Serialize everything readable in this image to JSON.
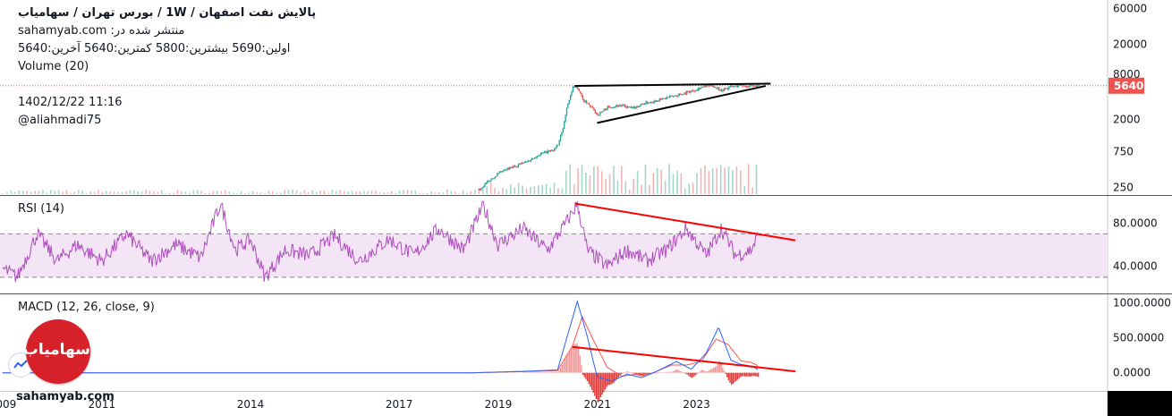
{
  "header": {
    "title": "پالایش نفت اصفهان / 1W / بورس تهران / سهامیاب",
    "published_on": "منتشر شده در: sahamyab.com",
    "ohlc": "اولین:5690 بیشترین:5800 کمترین:5640 آخرین:5640",
    "volume_label": "Volume (20)",
    "date": "1402/12/22 11:16",
    "author": "@aliahmadi75"
  },
  "last_price_badge": "5640",
  "rsi_label": "RSI (14)",
  "macd_label": "MACD (12, 26, close, 9)",
  "logo_text": "سهامیاب",
  "watermark": "sahamyab.com",
  "colors": {
    "bull": "#26a69a",
    "bear": "#ef5350",
    "rsi": "#9c27b0",
    "rsi_band": "#f3e5f5",
    "macd": "#2962ff",
    "signal": "#ff5252",
    "price_line": "#ef5350",
    "trend_red": "#ff0000"
  },
  "chart_data": [
    {
      "type": "line",
      "name": "price",
      "scale": "log",
      "ytick_labels": [
        "60000",
        "20000",
        "8000",
        "5640",
        "2000",
        "750",
        "250"
      ],
      "yticks": [
        60000,
        20000,
        8000,
        2000,
        750,
        250
      ],
      "ylim": [
        220,
        70000
      ],
      "x_tick_labels": [
        "2009",
        "2011",
        "2014",
        "2017",
        "2019",
        "2021",
        "2023"
      ],
      "x_ticks": [
        2009.0,
        2011.0,
        2014.0,
        2017.0,
        2019.0,
        2021.0,
        2023.0
      ],
      "xlim": [
        2008.95,
        2031.3
      ],
      "last_price": 5640,
      "close_points": [
        [
          2018.6,
          230
        ],
        [
          2018.8,
          300
        ],
        [
          2019.0,
          380
        ],
        [
          2019.3,
          470
        ],
        [
          2019.6,
          560
        ],
        [
          2019.85,
          700
        ],
        [
          2020.1,
          780
        ],
        [
          2020.2,
          900
        ],
        [
          2020.3,
          1500
        ],
        [
          2020.4,
          3200
        ],
        [
          2020.5,
          5200
        ],
        [
          2020.58,
          5600
        ],
        [
          2020.7,
          3600
        ],
        [
          2020.85,
          3000
        ],
        [
          2021.0,
          2300
        ],
        [
          2021.2,
          2900
        ],
        [
          2021.45,
          3100
        ],
        [
          2021.7,
          2800
        ],
        [
          2021.95,
          3300
        ],
        [
          2022.2,
          3600
        ],
        [
          2022.4,
          3900
        ],
        [
          2022.65,
          4300
        ],
        [
          2022.9,
          4800
        ],
        [
          2023.1,
          5400
        ],
        [
          2023.3,
          5700
        ],
        [
          2023.5,
          4900
        ],
        [
          2023.7,
          5500
        ],
        [
          2023.9,
          5700
        ],
        [
          2024.1,
          5500
        ],
        [
          2024.25,
          5640
        ]
      ],
      "annotations": [
        "upper trendline near 5600",
        "rising lower trendline"
      ]
    },
    {
      "type": "bar",
      "name": "Volume (20)",
      "note": "relative volume bars across the price history"
    },
    {
      "type": "line",
      "name": "RSI (14)",
      "ytick_labels": [
        "80.0000",
        "40.0000"
      ],
      "yticks": [
        80,
        40
      ],
      "ylim": [
        15,
        105
      ],
      "band": [
        30,
        70
      ],
      "points": [
        [
          2009.0,
          38
        ],
        [
          2009.3,
          30
        ],
        [
          2009.7,
          70
        ],
        [
          2010.1,
          45
        ],
        [
          2010.5,
          60
        ],
        [
          2011.0,
          45
        ],
        [
          2011.5,
          70
        ],
        [
          2012.0,
          45
        ],
        [
          2012.5,
          60
        ],
        [
          2013.0,
          48
        ],
        [
          2013.4,
          98
        ],
        [
          2013.7,
          55
        ],
        [
          2014.0,
          65
        ],
        [
          2014.3,
          30
        ],
        [
          2014.7,
          55
        ],
        [
          2015.2,
          50
        ],
        [
          2015.7,
          68
        ],
        [
          2016.2,
          45
        ],
        [
          2016.8,
          65
        ],
        [
          2017.3,
          50
        ],
        [
          2017.8,
          75
        ],
        [
          2018.3,
          55
        ],
        [
          2018.7,
          96
        ],
        [
          2019.0,
          60
        ],
        [
          2019.5,
          75
        ],
        [
          2020.0,
          55
        ],
        [
          2020.4,
          82
        ],
        [
          2020.6,
          98
        ],
        [
          2020.8,
          55
        ],
        [
          2021.2,
          40
        ],
        [
          2021.6,
          55
        ],
        [
          2022.0,
          45
        ],
        [
          2022.4,
          55
        ],
        [
          2022.8,
          75
        ],
        [
          2023.2,
          50
        ],
        [
          2023.5,
          75
        ],
        [
          2023.8,
          50
        ],
        [
          2024.1,
          55
        ],
        [
          2024.25,
          68
        ]
      ],
      "trendline": [
        [
          2020.55,
          98
        ],
        [
          2025.0,
          64
        ]
      ]
    },
    {
      "type": "line",
      "name": "MACD (12, 26, close, 9)",
      "ytick_labels": [
        "1000.0000",
        "500.0000",
        "0.0000"
      ],
      "yticks": [
        1000,
        500,
        0
      ],
      "ylim": [
        -260,
        1120
      ],
      "macd": [
        [
          2009.0,
          0
        ],
        [
          2018.5,
          0
        ],
        [
          2019.5,
          20
        ],
        [
          2020.2,
          40
        ],
        [
          2020.45,
          650
        ],
        [
          2020.6,
          1020
        ],
        [
          2020.8,
          520
        ],
        [
          2021.0,
          -60
        ],
        [
          2021.3,
          -120
        ],
        [
          2021.6,
          -20
        ],
        [
          2021.9,
          -70
        ],
        [
          2022.2,
          20
        ],
        [
          2022.6,
          160
        ],
        [
          2022.9,
          50
        ],
        [
          2023.2,
          280
        ],
        [
          2023.45,
          650
        ],
        [
          2023.7,
          180
        ],
        [
          2023.9,
          120
        ],
        [
          2024.15,
          90
        ],
        [
          2024.25,
          40
        ]
      ],
      "signal": [
        [
          2009.0,
          0
        ],
        [
          2018.5,
          0
        ],
        [
          2019.5,
          15
        ],
        [
          2020.2,
          30
        ],
        [
          2020.5,
          380
        ],
        [
          2020.7,
          800
        ],
        [
          2020.9,
          500
        ],
        [
          2021.2,
          80
        ],
        [
          2021.5,
          -50
        ],
        [
          2021.8,
          -20
        ],
        [
          2022.1,
          -10
        ],
        [
          2022.5,
          110
        ],
        [
          2022.8,
          110
        ],
        [
          2023.1,
          160
        ],
        [
          2023.4,
          480
        ],
        [
          2023.65,
          400
        ],
        [
          2023.9,
          170
        ],
        [
          2024.1,
          150
        ],
        [
          2024.25,
          100
        ]
      ],
      "trendline": [
        [
          2020.5,
          370
        ],
        [
          2025.0,
          20
        ]
      ]
    }
  ]
}
